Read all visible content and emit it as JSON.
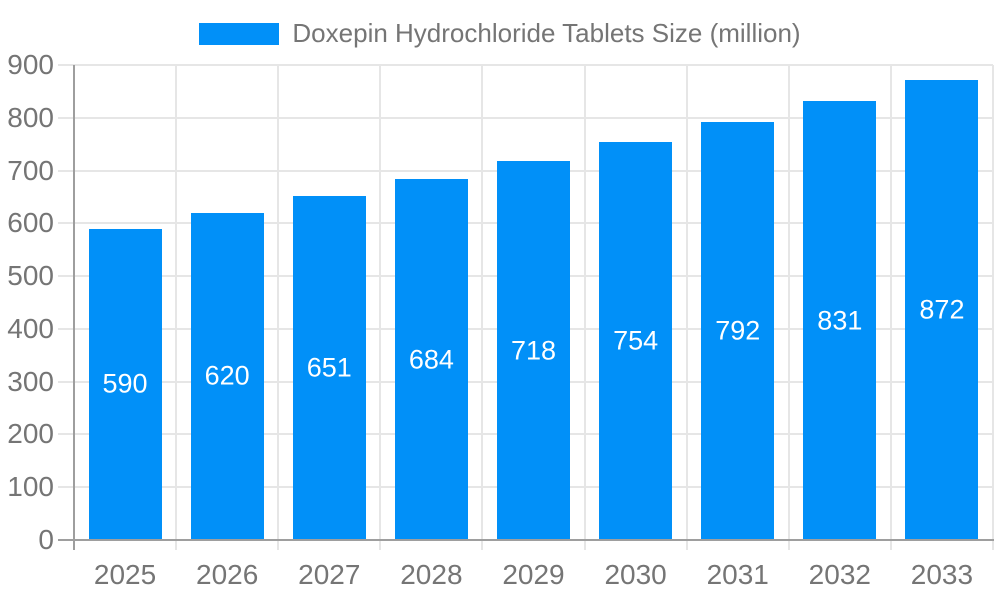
{
  "legend": {
    "label": "Doxepin Hydrochloride Tablets Size (million)"
  },
  "chart_data": {
    "type": "bar",
    "title": "",
    "xlabel": "",
    "ylabel": "",
    "categories": [
      "2025",
      "2026",
      "2027",
      "2028",
      "2029",
      "2030",
      "2031",
      "2032",
      "2033"
    ],
    "series": [
      {
        "name": "Doxepin Hydrochloride Tablets Size (million)",
        "values": [
          590,
          620,
          651,
          684,
          718,
          754,
          792,
          831,
          872
        ]
      }
    ],
    "value_labels_position": "inside-center",
    "ylim": [
      0,
      900
    ],
    "ytick_step": 100,
    "yticks": [
      0,
      100,
      200,
      300,
      400,
      500,
      600,
      700,
      800,
      900
    ],
    "grid": true,
    "legend_position": "top-center"
  },
  "colors": {
    "bar": "#0190f8",
    "grid": "#e6e6e6",
    "axis": "#9e9e9e",
    "tick_text": "#757575",
    "value_label_text": "#ffffff",
    "background": "#ffffff"
  }
}
